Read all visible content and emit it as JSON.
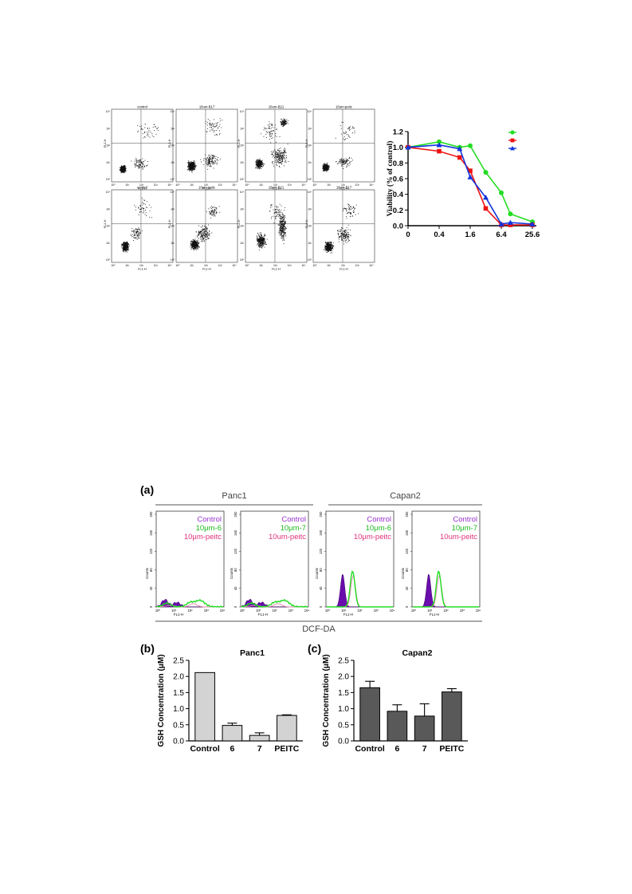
{
  "flow_panels": [
    {
      "title": "control",
      "xlabel": "FL1-H",
      "ylabel": "FL2-H"
    },
    {
      "title": "10um-B17",
      "xlabel": "FL1-H",
      "ylabel": "FL2-H"
    },
    {
      "title": "10um-B21",
      "xlabel": "FL1-H",
      "ylabel": "FL2-H"
    },
    {
      "title": "10um-peitc",
      "xlabel": "FL1-H",
      "ylabel": "FL2-H"
    },
    {
      "title": "control",
      "xlabel": "FL1-H",
      "ylabel": "FL2-H"
    },
    {
      "title": "10um-peitc",
      "xlabel": "FL1-H",
      "ylabel": "FL2-H"
    },
    {
      "title": "10um-B21",
      "xlabel": "FL1-H",
      "ylabel": "FL2-H"
    },
    {
      "title": "10um-B17",
      "xlabel": "FL1-H",
      "ylabel": "FL2-H"
    }
  ],
  "decade_ticks": [
    "10⁰",
    "10¹",
    "10²",
    "10³",
    "10⁴"
  ],
  "figure_a_label": "(a)",
  "figure_b_label": "(b)",
  "figure_c_label": "(c)",
  "histo_groups": [
    {
      "label": "Panc1"
    },
    {
      "label": "Capan2"
    }
  ],
  "histo_bottom_label": "DCF-DA",
  "histo_panels": [
    {
      "legend": [
        "Control",
        "10μm-6",
        "10μm-peitc"
      ],
      "ylabel": "Counts",
      "xlabel": "FL1-H"
    },
    {
      "legend": [
        "Control",
        "10μm-7",
        "10um-peitc"
      ],
      "ylabel": "Counts",
      "xlabel": "FL1-H"
    },
    {
      "legend": [
        "Control",
        "10μm-6",
        "10μm-peitc"
      ],
      "ylabel": "Counts",
      "xlabel": "FL1-H"
    },
    {
      "legend": [
        "Control",
        "10μm-7",
        "10um-peitc"
      ],
      "ylabel": "Counts",
      "xlabel": "FL1-H"
    }
  ],
  "histo_yticks": [
    "0",
    "40",
    "80",
    "120",
    "160",
    "200"
  ],
  "colors": {
    "green": "#22dd22",
    "red": "#ee1111",
    "blue": "#1133dd",
    "control_purple": "#6a0dad",
    "legend_purple": "#9933cc",
    "legend_green": "#22bb22",
    "legend_pink": "#e0307a",
    "bar_light": "#d3d3d3",
    "bar_dark": "#595959"
  },
  "chart_data": [
    {
      "type": "line",
      "title": "",
      "ylabel": "Viability (% of control)",
      "xlabel": "",
      "x": [
        0,
        0.4,
        1.6,
        6.4,
        25.6
      ],
      "xtick_labels": [
        "0",
        "0.4",
        "1.6",
        "6.4",
        "25.6"
      ],
      "ylim": [
        0.0,
        1.2
      ],
      "yticks": [
        "0.0",
        "0.2",
        "0.4",
        "0.6",
        "0.8",
        "1.0",
        "1.2"
      ],
      "legend_position": "top-right",
      "series": [
        {
          "color": "green",
          "marker": "circle",
          "points": [
            [
              0,
              1.0
            ],
            [
              0.4,
              1.07
            ],
            [
              1.0,
              1.0
            ],
            [
              1.6,
              1.02
            ],
            [
              3.2,
              0.68
            ],
            [
              6.4,
              0.42
            ],
            [
              9.6,
              0.15
            ],
            [
              25.6,
              0.05
            ]
          ]
        },
        {
          "color": "red",
          "marker": "square",
          "points": [
            [
              0,
              1.0
            ],
            [
              0.4,
              0.95
            ],
            [
              1.0,
              0.87
            ],
            [
              1.6,
              0.7
            ],
            [
              3.2,
              0.22
            ],
            [
              6.4,
              0.01
            ],
            [
              9.6,
              0.01
            ],
            [
              25.6,
              0.01
            ]
          ]
        },
        {
          "color": "blue",
          "marker": "triangle",
          "points": [
            [
              0,
              1.0
            ],
            [
              0.4,
              1.03
            ],
            [
              1.0,
              0.98
            ],
            [
              1.6,
              0.62
            ],
            [
              3.2,
              0.36
            ],
            [
              6.4,
              0.02
            ],
            [
              9.6,
              0.04
            ],
            [
              25.6,
              0.02
            ]
          ]
        }
      ]
    },
    {
      "type": "bar",
      "title": "Panc1",
      "ylabel": "GSH Concentration (μM)",
      "categories": [
        "Control",
        "6",
        "7",
        "PEITC"
      ],
      "values": [
        2.12,
        0.48,
        0.17,
        0.79
      ],
      "errors": [
        0.0,
        0.07,
        0.08,
        0.02
      ],
      "ylim": [
        0.0,
        2.5
      ],
      "yticks": [
        "0.0",
        "0.5",
        "1.0",
        "1.5",
        "2.0",
        "2.5"
      ],
      "color": "bar_light"
    },
    {
      "type": "bar",
      "title": "Capan2",
      "ylabel": "GSH Concentration (μM)",
      "categories": [
        "Control",
        "6",
        "7",
        "PEITC"
      ],
      "values": [
        1.65,
        0.92,
        0.77,
        1.52
      ],
      "errors": [
        0.2,
        0.2,
        0.38,
        0.1
      ],
      "ylim": [
        0.0,
        2.5
      ],
      "yticks": [
        "0.0",
        "0.5",
        "1.0",
        "1.5",
        "2.0",
        "2.5"
      ],
      "color": "bar_dark"
    }
  ]
}
